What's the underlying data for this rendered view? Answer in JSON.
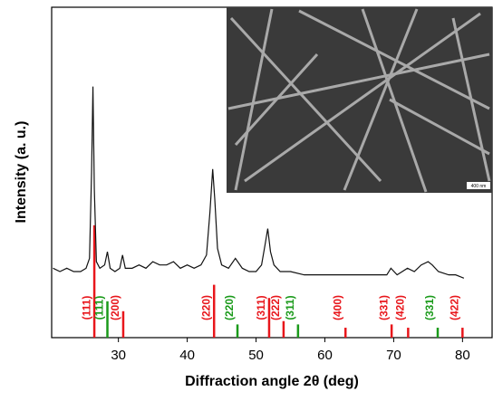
{
  "chart_data": {
    "type": "line",
    "x_label": "Diffraction angle 2θ (deg)",
    "y_label": "Intensity (a. u.)",
    "xlim": [
      20.3,
      84.3
    ],
    "ylim": [
      0,
      100
    ],
    "xticks": [
      30,
      40,
      50,
      60,
      70,
      80
    ],
    "series": [
      {
        "color": "#111111",
        "x": [
          20.5,
          21.5,
          22.5,
          23.5,
          24.5,
          25.3,
          25.8,
          26.1,
          26.3,
          26.5,
          26.8,
          27.3,
          28.0,
          28.4,
          28.8,
          29.5,
          30.2,
          30.6,
          31.0,
          32.0,
          33.0,
          34.0,
          35.0,
          36.0,
          37.0,
          38.0,
          39.0,
          40.0,
          41.0,
          42.0,
          42.8,
          43.3,
          43.7,
          44.0,
          44.4,
          45.0,
          46.0,
          47.0,
          48.0,
          49.0,
          50.0,
          50.8,
          51.3,
          51.7,
          52.1,
          52.6,
          53.5,
          55.0,
          57.0,
          59.0,
          61.0,
          63.0,
          65.0,
          67.0,
          69.0,
          69.6,
          70.5,
          72.0,
          73.0,
          74.0,
          75.0,
          75.6,
          76.5,
          78.0,
          79.0,
          80.2
        ],
        "values": [
          21,
          20,
          21,
          20,
          20,
          21,
          24,
          50,
          76,
          45,
          23,
          21,
          22,
          26,
          21,
          20,
          21,
          25,
          21,
          21,
          22,
          21,
          23,
          22,
          22,
          23,
          21,
          22,
          21,
          22,
          25,
          38,
          51,
          42,
          27,
          22,
          21,
          24,
          21,
          20,
          20,
          22,
          28,
          33,
          26,
          22,
          20,
          20,
          19,
          19,
          19,
          19,
          19,
          19,
          19,
          21,
          19,
          21,
          20,
          22,
          23,
          22,
          20,
          19,
          19,
          18
        ]
      }
    ],
    "reference_lines": [
      {
        "color": "#e8161b",
        "positions": [
          26.5,
          30.7,
          43.9,
          51.9,
          54.0,
          63.0,
          69.7,
          72.1,
          80.0
        ],
        "heights": [
          34,
          8,
          16,
          12,
          5,
          3,
          4,
          3,
          3
        ],
        "labels": [
          "(111)",
          "(200)",
          "(220)",
          "(311)",
          "(222)",
          "(400)",
          "(331)",
          "(420)",
          "(422)"
        ]
      },
      {
        "color": "#1a9a1a",
        "positions": [
          28.4,
          47.3,
          56.1,
          76.4
        ],
        "heights": [
          11,
          4,
          4,
          3
        ],
        "labels": [
          "(111)",
          "(220)",
          "(311)",
          "(331)"
        ]
      }
    ],
    "inset_scale_label": "400 nm"
  }
}
